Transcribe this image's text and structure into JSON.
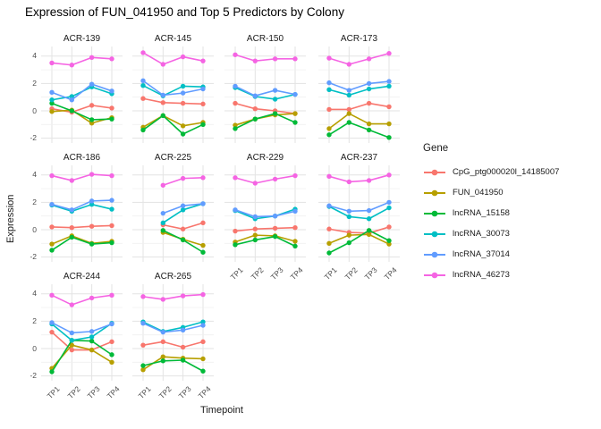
{
  "title": "Expression of FUN_041950 and Top 5 Predictors by Colony",
  "axes": {
    "x_label": "Timepoint",
    "y_label": "Expression",
    "y_ticks": [
      "4",
      "2",
      "0",
      "-2"
    ],
    "x_ticks": [
      "TP1",
      "TP2",
      "TP3",
      "TP4"
    ]
  },
  "legend": {
    "title": "Gene",
    "entries": [
      {
        "label": "CpG_ptg000020l_14185007",
        "color": "#F8766D"
      },
      {
        "label": "FUN_041950",
        "color": "#B79F00"
      },
      {
        "label": "lncRNA_15158",
        "color": "#00BA38"
      },
      {
        "label": "lncRNA_30073",
        "color": "#00BFC4"
      },
      {
        "label": "lncRNA_37014",
        "color": "#619CFF"
      },
      {
        "label": "lncRNA_46273",
        "color": "#F564E3"
      }
    ]
  },
  "chart_data": {
    "type": "line",
    "title": "Expression of FUN_041950 and Top 5 Predictors by Colony",
    "xlabel": "Timepoint",
    "ylabel": "Expression",
    "facet_by": "Colony",
    "categories": [
      "TP1",
      "TP2",
      "TP3",
      "TP4"
    ],
    "ylim": [
      -2.35,
      4.7
    ],
    "y_major_gridlines": [
      4,
      2,
      0,
      -2
    ],
    "y_minor_gridlines": [
      3,
      1,
      -1
    ],
    "grid": true,
    "legend_position": "right",
    "genes": [
      {
        "name": "CpG_ptg000020l_14185007",
        "color": "#F8766D"
      },
      {
        "name": "FUN_041950",
        "color": "#B79F00"
      },
      {
        "name": "lncRNA_15158",
        "color": "#00BA38"
      },
      {
        "name": "lncRNA_30073",
        "color": "#00BFC4"
      },
      {
        "name": "lncRNA_37014",
        "color": "#619CFF"
      },
      {
        "name": "lncRNA_46273",
        "color": "#F564E3"
      }
    ],
    "facets": [
      {
        "colony": "ACR-139",
        "values": {
          "CpG_ptg000020l_14185007": [
            0.15,
            -0.1,
            0.4,
            0.2
          ],
          "FUN_041950": [
            -0.05,
            0.05,
            -0.9,
            -0.5
          ],
          "lncRNA_15158": [
            0.55,
            0.0,
            -0.65,
            -0.6
          ],
          "lncRNA_30073": [
            0.8,
            1.05,
            1.75,
            1.25
          ],
          "lncRNA_37014": [
            1.35,
            0.8,
            1.95,
            1.45
          ],
          "lncRNA_46273": [
            3.5,
            3.35,
            3.9,
            3.8
          ]
        }
      },
      {
        "colony": "ACR-145",
        "values": {
          "CpG_ptg000020l_14185007": [
            0.9,
            0.6,
            0.55,
            0.5
          ],
          "FUN_041950": [
            -1.2,
            -0.35,
            -1.1,
            -0.85
          ],
          "lncRNA_15158": [
            -1.4,
            -0.35,
            -1.7,
            -1.0
          ],
          "lncRNA_30073": [
            1.85,
            1.1,
            1.8,
            1.75
          ],
          "lncRNA_37014": [
            2.2,
            1.15,
            1.3,
            1.6
          ],
          "lncRNA_46273": [
            4.25,
            3.4,
            3.95,
            3.65
          ]
        }
      },
      {
        "colony": "ACR-150",
        "values": {
          "CpG_ptg000020l_14185007": [
            0.55,
            0.15,
            0.0,
            -0.2
          ],
          "FUN_041950": [
            -1.05,
            -0.6,
            -0.3,
            -0.2
          ],
          "lncRNA_15158": [
            -1.3,
            -0.6,
            -0.2,
            -0.85
          ],
          "lncRNA_30073": [
            1.7,
            1.05,
            0.85,
            1.2
          ],
          "lncRNA_37014": [
            1.8,
            1.1,
            1.5,
            1.2
          ],
          "lncRNA_46273": [
            4.1,
            3.65,
            3.8,
            3.8
          ]
        }
      },
      {
        "colony": "ACR-173",
        "values": {
          "CpG_ptg000020l_14185007": [
            0.1,
            0.1,
            0.55,
            0.3
          ],
          "FUN_041950": [
            -1.3,
            -0.2,
            -0.95,
            -0.95
          ],
          "lncRNA_15158": [
            -1.75,
            -0.85,
            -1.4,
            -1.95
          ],
          "lncRNA_30073": [
            1.55,
            1.15,
            1.6,
            1.8
          ],
          "lncRNA_37014": [
            2.05,
            1.5,
            2.0,
            2.15
          ],
          "lncRNA_46273": [
            3.85,
            3.4,
            3.8,
            4.2
          ]
        }
      },
      {
        "colony": "ACR-186",
        "values": {
          "CpG_ptg000020l_14185007": [
            0.2,
            0.15,
            0.25,
            0.3
          ],
          "FUN_041950": [
            -1.05,
            -0.45,
            -1.0,
            -0.85
          ],
          "lncRNA_15158": [
            -1.5,
            -0.55,
            -1.05,
            -0.95
          ],
          "lncRNA_30073": [
            1.8,
            1.35,
            1.85,
            1.5
          ],
          "lncRNA_37014": [
            1.85,
            1.45,
            2.1,
            2.15
          ],
          "lncRNA_46273": [
            3.95,
            3.6,
            4.05,
            3.95
          ]
        }
      },
      {
        "colony": "ACR-225",
        "values": {
          "CpG_ptg000020l_14185007": [
            null,
            0.35,
            0.05,
            0.5
          ],
          "FUN_041950": [
            null,
            -0.2,
            -0.7,
            -1.15
          ],
          "lncRNA_15158": [
            null,
            -0.05,
            -0.75,
            -1.65
          ],
          "lncRNA_30073": [
            null,
            0.5,
            1.45,
            1.9
          ],
          "lncRNA_37014": [
            null,
            1.2,
            1.75,
            1.9
          ],
          "lncRNA_46273": [
            null,
            3.25,
            3.75,
            3.8
          ]
        }
      },
      {
        "colony": "ACR-229",
        "values": {
          "CpG_ptg000020l_14185007": [
            -0.1,
            0.05,
            0.1,
            0.15
          ],
          "FUN_041950": [
            -0.9,
            -0.4,
            -0.45,
            -0.85
          ],
          "lncRNA_15158": [
            -1.1,
            -0.75,
            -0.5,
            -1.2
          ],
          "lncRNA_30073": [
            1.4,
            0.8,
            1.0,
            1.5
          ],
          "lncRNA_37014": [
            1.45,
            0.95,
            1.0,
            1.35
          ],
          "lncRNA_46273": [
            3.8,
            3.4,
            3.7,
            3.95
          ]
        }
      },
      {
        "colony": "ACR-237",
        "values": {
          "CpG_ptg000020l_14185007": [
            0.05,
            -0.2,
            -0.25,
            0.2
          ],
          "FUN_041950": [
            -1.0,
            -0.4,
            -0.35,
            -1.05
          ],
          "lncRNA_15158": [
            -1.7,
            -0.95,
            -0.05,
            -0.8
          ],
          "lncRNA_30073": [
            1.7,
            0.95,
            0.8,
            1.6
          ],
          "lncRNA_37014": [
            1.75,
            1.35,
            1.4,
            2.0
          ],
          "lncRNA_46273": [
            3.9,
            3.5,
            3.6,
            4.0
          ]
        }
      },
      {
        "colony": "ACR-244",
        "values": {
          "CpG_ptg000020l_14185007": [
            1.2,
            -0.1,
            -0.1,
            0.5
          ],
          "FUN_041950": [
            -1.45,
            0.25,
            -0.1,
            -1.0
          ],
          "lncRNA_15158": [
            -1.7,
            0.6,
            0.55,
            -0.45
          ],
          "lncRNA_30073": [
            1.8,
            0.6,
            0.85,
            1.85
          ],
          "lncRNA_37014": [
            1.9,
            1.15,
            1.25,
            1.8
          ],
          "lncRNA_46273": [
            3.9,
            3.2,
            3.7,
            3.9
          ]
        }
      },
      {
        "colony": "ACR-265",
        "values": {
          "CpG_ptg000020l_14185007": [
            0.25,
            0.5,
            0.1,
            0.5
          ],
          "FUN_041950": [
            -1.55,
            -0.6,
            -0.7,
            -0.75
          ],
          "lncRNA_15158": [
            -1.25,
            -0.9,
            -0.85,
            -1.65
          ],
          "lncRNA_30073": [
            1.95,
            1.25,
            1.55,
            1.95
          ],
          "lncRNA_37014": [
            1.85,
            1.2,
            1.35,
            1.7
          ],
          "lncRNA_46273": [
            3.8,
            3.6,
            3.85,
            3.95
          ]
        }
      }
    ]
  },
  "style": {
    "grid_major_color": "#E3E3E3",
    "grid_minor_color": "#F0F0F0",
    "tick_text_color": "#4d4d4d",
    "text_color": "#1a1a1a"
  }
}
